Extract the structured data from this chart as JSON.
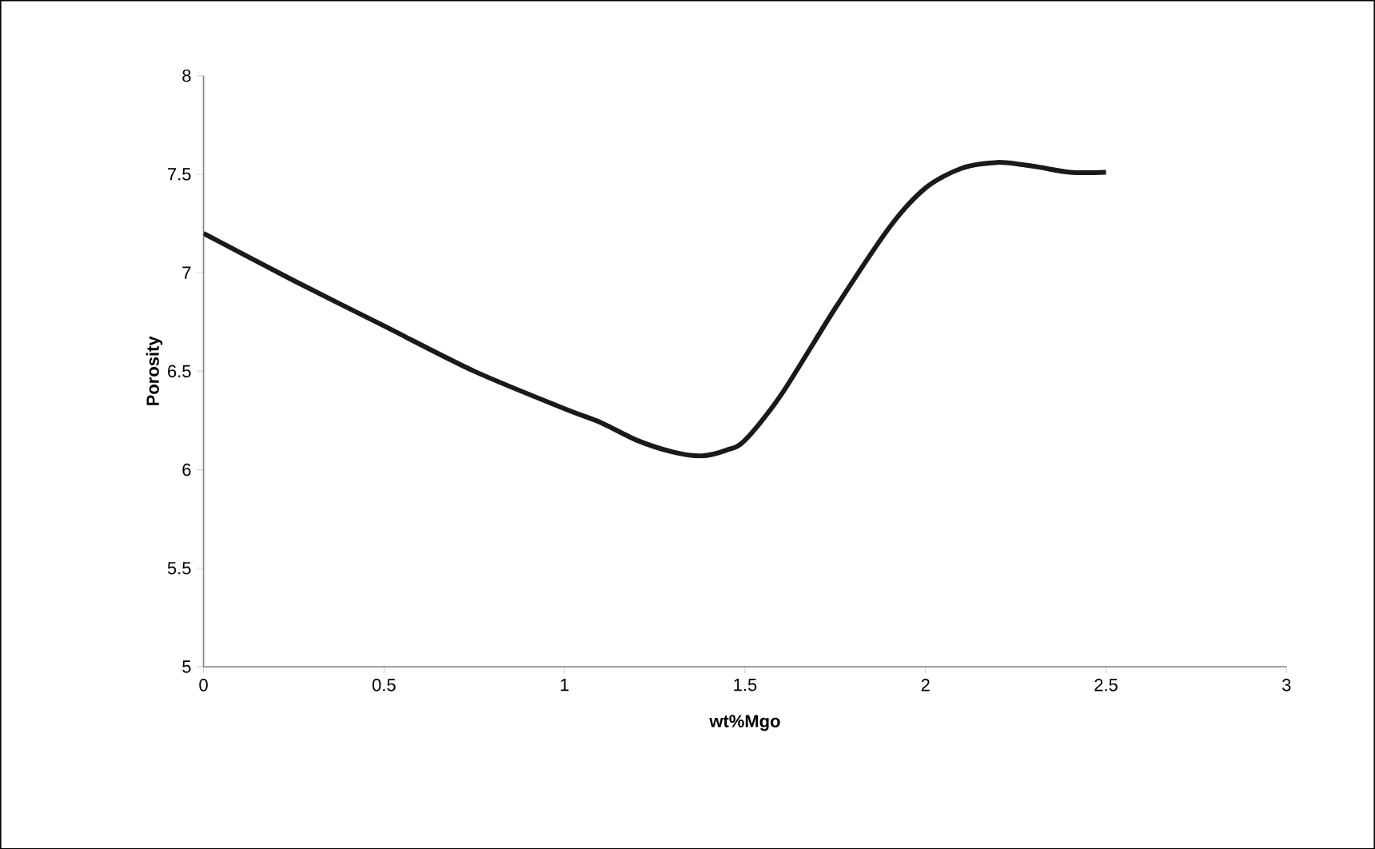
{
  "chart_data": {
    "type": "line",
    "xlabel": "wt%Mgo",
    "ylabel": "Porosity",
    "x": [
      0,
      0.25,
      0.5,
      0.75,
      1,
      1.1,
      1.2,
      1.3,
      1.38,
      1.45,
      1.5,
      1.6,
      1.75,
      1.9,
      2,
      2.1,
      2.2,
      2.3,
      2.4,
      2.5
    ],
    "series": [
      {
        "color": "#1a1a1a",
        "values": [
          7.2,
          6.96,
          6.73,
          6.5,
          6.31,
          6.24,
          6.15,
          6.09,
          6.07,
          6.1,
          6.15,
          6.38,
          6.82,
          7.23,
          7.43,
          7.53,
          7.56,
          7.54,
          7.51,
          7.51
        ]
      }
    ],
    "xlim": [
      0,
      3
    ],
    "ylim": [
      5,
      8
    ],
    "xticks": [
      0,
      0.5,
      1,
      1.5,
      2,
      2.5,
      3
    ],
    "yticks": [
      5,
      5.5,
      6,
      6.5,
      7,
      7.5,
      8
    ],
    "grid": false,
    "marker": "none",
    "line_style": "solid"
  }
}
